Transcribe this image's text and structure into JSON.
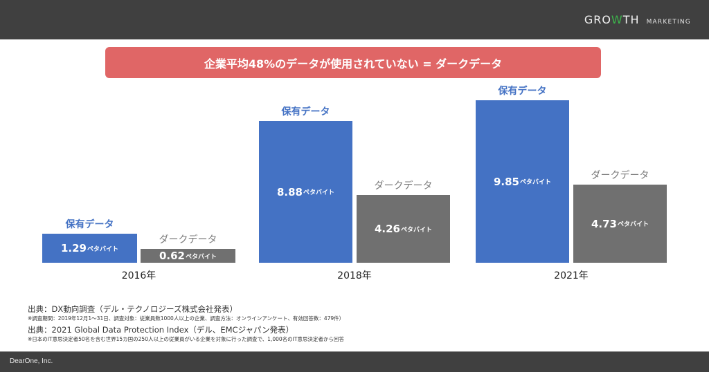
{
  "header": {
    "logo_main_pre": "GRO",
    "logo_main_w": "W",
    "logo_main_post": "TH",
    "logo_sub": "MARKETING"
  },
  "banner": {
    "text": "企業平均48%のデータが使用されていない = ダークデータ",
    "color": "#e06666"
  },
  "chart_data": {
    "type": "bar",
    "title": "企業平均48%のデータが使用されていない = ダークデータ",
    "categories": [
      "2016年",
      "2018年",
      "2021年"
    ],
    "unit": "ペタバイト",
    "series": [
      {
        "name": "保有データ",
        "color": "#4472c4",
        "values": [
          1.29,
          8.88,
          9.85
        ],
        "labels": [
          "1.29",
          "8.88",
          "9.85"
        ]
      },
      {
        "name": "ダークデータ",
        "color": "#707070",
        "values": [
          0.62,
          4.26,
          4.73
        ],
        "labels": [
          "0.62",
          "4.26",
          "4.73"
        ]
      }
    ],
    "xlabel": "",
    "ylabel": "",
    "grid": false,
    "legend": "none"
  },
  "notes": [
    {
      "source": "出典：DX動向調査（デル・テクノロジーズ株式会社発表）",
      "detail": "※調査期間：2019年12月1～31日、調査対象：従業員数1000人以上の企業、調査方法：オンラインアンケート、有効回答数：479件）"
    },
    {
      "source": "出典：2021 Global Data Protection Index（デル、EMCジャパン発表）",
      "detail": "※日本のIT意思決定者50名を含む世界15カ国の250人以上の従業員がいる企業を対象に行った調査で、1,000名のIT意思決定者から回答"
    }
  ],
  "footer": {
    "company": "DearOne, Inc."
  }
}
